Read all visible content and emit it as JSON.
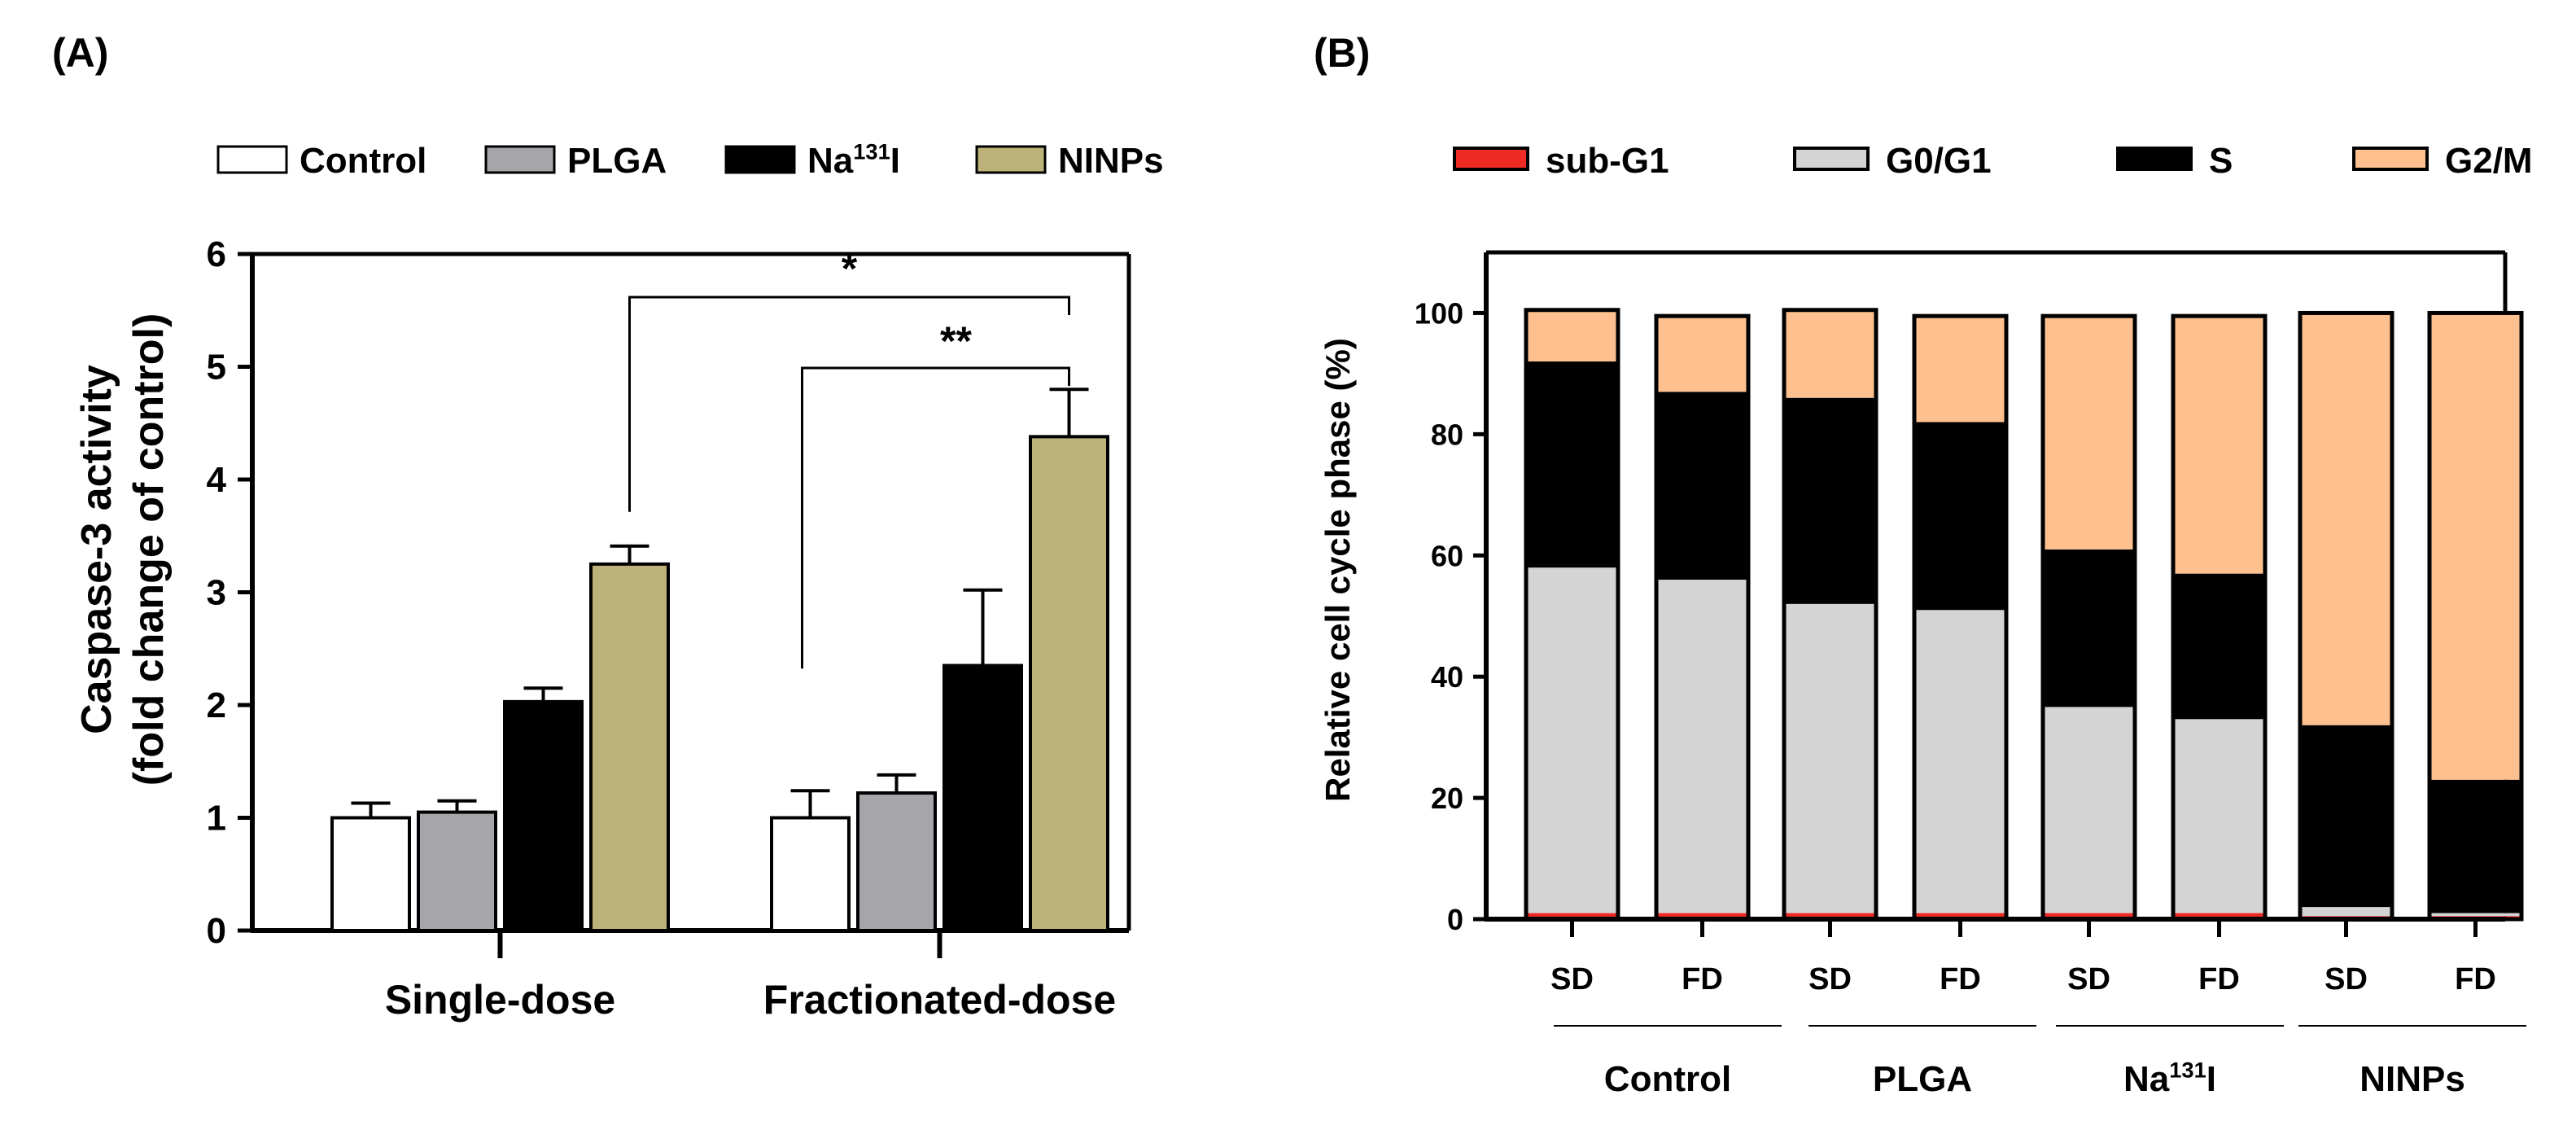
{
  "chart_data": [
    {
      "type": "bar",
      "panel_label": "(A)",
      "title": "",
      "xlabel": "",
      "ylabel": "Caspase-3 activity\n(fold change of control)",
      "ylabel_lines": [
        "Caspase-3 activity",
        "(fold change of control)"
      ],
      "ylim": [
        0,
        6
      ],
      "yticks": [
        "0",
        "1",
        "2",
        "3",
        "4",
        "5",
        "6"
      ],
      "categories": [
        "Single-dose",
        "Fractionated-dose"
      ],
      "legend_position": "top",
      "series": [
        {
          "name": "Control",
          "legend_base": "Control",
          "legend_sup": "",
          "legend_tail": "",
          "color": "#ffffff",
          "values": [
            1.0,
            1.0
          ],
          "errors": [
            0.13,
            0.24
          ]
        },
        {
          "name": "PLGA",
          "legend_base": "PLGA",
          "legend_sup": "",
          "legend_tail": "",
          "color": "#a6a6aa",
          "values": [
            1.05,
            1.22
          ],
          "errors": [
            0.1,
            0.16
          ]
        },
        {
          "name": "Na131I",
          "legend_base": "Na",
          "legend_sup": "131",
          "legend_tail": "I",
          "color": "#000000",
          "values": [
            2.03,
            2.35
          ],
          "errors": [
            0.12,
            0.67
          ]
        },
        {
          "name": "NINPs",
          "legend_base": "NINPs",
          "legend_sup": "",
          "legend_tail": "",
          "color": "#bdb37a",
          "values": [
            3.25,
            4.38
          ],
          "errors": [
            0.16,
            0.42
          ]
        }
      ],
      "significance": [
        {
          "label": "*",
          "from": "Single-dose NINPs",
          "to": "Fractionated-dose NINPs"
        },
        {
          "label": "**",
          "from": "Fractionated-dose Control",
          "to": "Fractionated-dose NINPs"
        }
      ]
    },
    {
      "type": "stacked_bar",
      "panel_label": "(B)",
      "title": "",
      "xlabel": "",
      "ylabel": "Relative cell cycle phase (%)",
      "ylim": [
        0,
        110
      ],
      "yticks": [
        "0",
        "20",
        "40",
        "60",
        "80",
        "100"
      ],
      "legend_position": "top",
      "categories": [
        "SD",
        "FD",
        "SD",
        "FD",
        "SD",
        "FD",
        "SD",
        "FD"
      ],
      "groups": [
        {
          "label_base": "Control",
          "label_sup": "",
          "label_tail": ""
        },
        {
          "label_base": "PLGA",
          "label_sup": "",
          "label_tail": ""
        },
        {
          "label_base": "Na",
          "label_sup": "131",
          "label_tail": "I"
        },
        {
          "label_base": "NINPs",
          "label_sup": "",
          "label_tail": ""
        }
      ],
      "series": [
        {
          "name": "sub-G1",
          "color": "#ee2a24",
          "values": [
            1,
            1,
            1,
            1,
            1,
            1,
            0.5,
            0.5
          ]
        },
        {
          "name": "G0/G1",
          "color": "#d4d4d4",
          "values": [
            57,
            55,
            51,
            50,
            34,
            32,
            1.5,
            0.5
          ]
        },
        {
          "name": "S",
          "color": "#000000",
          "values": [
            34,
            31,
            34,
            31,
            26,
            24,
            30,
            22
          ]
        },
        {
          "name": "G2/M",
          "color": "#fdc08e",
          "values": [
            8.5,
            12.5,
            14.5,
            17.5,
            38.5,
            42.5,
            68,
            77
          ]
        }
      ]
    }
  ]
}
